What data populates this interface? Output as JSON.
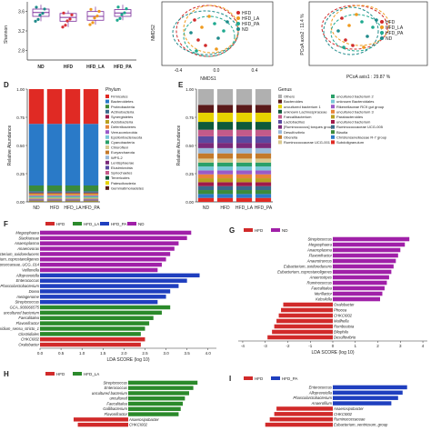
{
  "colors": {
    "ND": "#1f8a8a",
    "HFD": "#d8323a",
    "HFD_LA": "#ef9a1e",
    "HFD_PA": "#1fa98f",
    "lda_HFD": "#d12a2a",
    "lda_HFD_LA": "#2b8a2b",
    "lda_HFD_PA": "#1f3fbf",
    "lda_ND": "#a020a8",
    "box": "#7c2d9c"
  },
  "panel_labels": {
    "D": "D",
    "E": "E",
    "F": "F",
    "G": "G",
    "H": "H",
    "I": "I"
  },
  "chart_data": [
    {
      "type": "box",
      "panel": "A",
      "ylabel": "Shannon",
      "ylim": [
        2.6,
        3.8
      ],
      "yticks": [
        "2.8",
        "3.2",
        "3.6"
      ],
      "categories": [
        "ND",
        "HFD",
        "HFD_LA",
        "HFD_PA"
      ],
      "boxes": [
        {
          "q1": 3.5,
          "median": 3.58,
          "q3": 3.65,
          "min": 3.4,
          "max": 3.74
        },
        {
          "q1": 3.4,
          "median": 3.48,
          "q3": 3.56,
          "min": 3.28,
          "max": 3.62
        },
        {
          "q1": 3.42,
          "median": 3.5,
          "q3": 3.6,
          "min": 3.33,
          "max": 3.7
        },
        {
          "q1": 3.5,
          "median": 3.57,
          "q3": 3.64,
          "min": 3.42,
          "max": 3.74
        }
      ]
    },
    {
      "type": "scatter",
      "panel": "B",
      "xlabel": "NMDS1",
      "ylabel": "NMDS2",
      "xticks": [
        "-0.4",
        "0.0",
        "0.4"
      ],
      "legend": [
        "HFD",
        "HFD_LA",
        "HFD_PA",
        "ND"
      ]
    },
    {
      "type": "scatter",
      "panel": "C",
      "xlabel": "PCoA axis1 : 29.87 %",
      "ylabel": "PCoA axis2 : 11.4 %",
      "legend": [
        "HFD",
        "HFD_LA",
        "HFD_PA",
        "ND"
      ]
    },
    {
      "type": "stacked_bar",
      "panel": "D",
      "ylabel": "Relative Abundance",
      "yticks": [
        "0.00",
        "0.25",
        "0.50",
        "0.75",
        "1.00"
      ],
      "categories": [
        "ND",
        "HFD",
        "HFD_LA",
        "HFD_PA"
      ],
      "legend_title": "Phylum",
      "series": [
        {
          "name": "Gemmatimonadetes",
          "color": "#5a1a1a",
          "values": [
            0.003,
            0.003,
            0.003,
            0.003
          ]
        },
        {
          "name": "Patescibacteria",
          "color": "#e6d200",
          "values": [
            0.004,
            0.004,
            0.004,
            0.004
          ]
        },
        {
          "name": "Tenericutes",
          "color": "#0f5a3a",
          "values": [
            0.004,
            0.004,
            0.004,
            0.004
          ]
        },
        {
          "name": "Spirochaetes",
          "color": "#c45a8a",
          "values": [
            0.004,
            0.004,
            0.004,
            0.004
          ]
        },
        {
          "name": "Elusimicrobia",
          "color": "#5a4aa0",
          "values": [
            0.004,
            0.004,
            0.004,
            0.004
          ]
        },
        {
          "name": "Lentisphaerae",
          "color": "#7a2a7a",
          "values": [
            0.004,
            0.004,
            0.004,
            0.004
          ]
        },
        {
          "name": "WPS-2",
          "color": "#9ab8d8",
          "values": [
            0.004,
            0.004,
            0.004,
            0.004
          ]
        },
        {
          "name": "Euryarchaeota",
          "color": "#c47a2a",
          "values": [
            0.005,
            0.005,
            0.005,
            0.005
          ]
        },
        {
          "name": "Chloroflexi",
          "color": "#d8c890",
          "values": [
            0.006,
            0.006,
            0.006,
            0.006
          ]
        },
        {
          "name": "Cyanobacteria",
          "color": "#2aa06a",
          "values": [
            0.008,
            0.008,
            0.008,
            0.008
          ]
        },
        {
          "name": "Epsilonbacteraeota",
          "color": "#7ac8d8",
          "values": [
            0.006,
            0.006,
            0.006,
            0.006
          ]
        },
        {
          "name": "Verrucomicrobia",
          "color": "#9a5ac8",
          "values": [
            0.006,
            0.006,
            0.006,
            0.006
          ]
        },
        {
          "name": "Deferribacteres",
          "color": "#e8843a",
          "values": [
            0.01,
            0.01,
            0.01,
            0.01
          ]
        },
        {
          "name": "Acidobacteria",
          "color": "#b8a020",
          "values": [
            0.008,
            0.008,
            0.008,
            0.008
          ]
        },
        {
          "name": "Synergistetes",
          "color": "#a01a4a",
          "values": [
            0.006,
            0.006,
            0.006,
            0.006
          ]
        },
        {
          "name": "Actinobacteria",
          "color": "#3a6a8a",
          "values": [
            0.014,
            0.014,
            0.014,
            0.014
          ]
        },
        {
          "name": "Proteobacteria",
          "color": "#3a8a3a",
          "values": [
            0.05,
            0.05,
            0.05,
            0.05
          ]
        },
        {
          "name": "Bacteroidetes",
          "color": "#2a7ac8",
          "values": [
            0.55,
            0.55,
            0.55,
            0.55
          ]
        },
        {
          "name": "Firmicutes",
          "color": "#e02a24",
          "values": [
            0.31,
            0.31,
            0.31,
            0.31
          ]
        }
      ]
    },
    {
      "type": "stacked_bar",
      "panel": "E",
      "ylabel": "Relative Abundance",
      "yticks": [
        "0.00",
        "0.25",
        "0.50",
        "0.75",
        "1.00"
      ],
      "categories": [
        "ND",
        "HFD",
        "HFD_LA",
        "HFD_PA"
      ],
      "legend_title": "Genus",
      "series": [
        {
          "name": "Subdoligranulum",
          "color": "#e02a24",
          "values": [
            0.03,
            0.03,
            0.03,
            0.03
          ]
        },
        {
          "name": "Christensenellaceae R-7 group",
          "color": "#2a7ac8",
          "values": [
            0.03,
            0.03,
            0.03,
            0.03
          ]
        },
        {
          "name": "Blautia",
          "color": "#3a8a3a",
          "values": [
            0.03,
            0.03,
            0.03,
            0.03
          ]
        },
        {
          "name": "Ruminococcaceae UCG-005",
          "color": "#3a6a8a",
          "values": [
            0.03,
            0.03,
            0.03,
            0.03
          ]
        },
        {
          "name": "uncultured bacterium",
          "color": "#a01a4a",
          "values": [
            0.03,
            0.03,
            0.03,
            0.03
          ]
        },
        {
          "name": "Parabacteroides",
          "color": "#b8a020",
          "values": [
            0.03,
            0.03,
            0.03,
            0.03
          ]
        },
        {
          "name": "uncultured bacterium 3",
          "color": "#e8843a",
          "values": [
            0.03,
            0.03,
            0.03,
            0.03
          ]
        },
        {
          "name": "Rikenellaceae RC9 gut group",
          "color": "#9a5ac8",
          "values": [
            0.03,
            0.03,
            0.03,
            0.03
          ]
        },
        {
          "name": "unknown Bacteroidales",
          "color": "#7ac8d8",
          "values": [
            0.03,
            0.03,
            0.03,
            0.03
          ]
        },
        {
          "name": "uncultured bacterium 2",
          "color": "#2aa06a",
          "values": [
            0.03,
            0.03,
            0.03,
            0.03
          ]
        },
        {
          "name": "Ruminococcaceae UCG-001",
          "color": "#d8c890",
          "values": [
            0.03,
            0.03,
            0.03,
            0.03
          ]
        },
        {
          "name": "Oberella",
          "color": "#c47a2a",
          "values": [
            0.04,
            0.04,
            0.04,
            0.04
          ]
        },
        {
          "name": "Desulfovibrio",
          "color": "#9ab8d8",
          "values": [
            0.04,
            0.04,
            0.04,
            0.04
          ]
        },
        {
          "name": "[Ruminococcus] torques group",
          "color": "#7a2a7a",
          "values": [
            0.04,
            0.04,
            0.04,
            0.04
          ]
        },
        {
          "name": "Lactobacillus",
          "color": "#5a4aa0",
          "values": [
            0.05,
            0.05,
            0.05,
            0.05
          ]
        },
        {
          "name": "Faecalibacterium",
          "color": "#c45a8a",
          "values": [
            0.05,
            0.05,
            0.05,
            0.05
          ]
        },
        {
          "name": "unknown Lachnospiraceae",
          "color": "#0f5a3a",
          "values": [
            0.06,
            0.06,
            0.06,
            0.06
          ]
        },
        {
          "name": "uncultured bacterium 1",
          "color": "#e6d200",
          "values": [
            0.07,
            0.07,
            0.07,
            0.07
          ]
        },
        {
          "name": "Bacteroides",
          "color": "#5a1a1a",
          "values": [
            0.06,
            0.06,
            0.06,
            0.06
          ]
        },
        {
          "name": "Others",
          "color": "#b0b0b0",
          "values": [
            0.12,
            0.12,
            0.12,
            0.12
          ]
        }
      ]
    },
    {
      "type": "bar",
      "panel": "F",
      "xlabel": "LDA SCORE (log 10)",
      "xticks": [
        "0.0",
        "0.5",
        "1.0",
        "1.5",
        "2.0",
        "2.5",
        "3.0",
        "3.5",
        "4.0"
      ],
      "xlim": [
        0,
        4.2
      ],
      "legend": [
        "HFD",
        "HFD_LA",
        "HFD_PA",
        "ND"
      ],
      "items": [
        {
          "label": "Megasphaera",
          "group": "ND",
          "value": 3.6
        },
        {
          "label": "Slackiaceae",
          "group": "ND",
          "value": 3.5
        },
        {
          "label": "Anaeroplasma",
          "group": "ND",
          "value": 3.3
        },
        {
          "label": "Anaerovorax",
          "group": "ND",
          "value": 3.2
        },
        {
          "label": "Eubacterium_oxidoreducens",
          "group": "ND",
          "value": 3.1
        },
        {
          "label": "Eubacterium_coprostanoligenes",
          "group": "ND",
          "value": 3.0
        },
        {
          "label": "Ruminococcaceae_UCG_014",
          "group": "ND",
          "value": 2.9
        },
        {
          "label": "Veillonella",
          "group": "ND",
          "value": 2.8
        },
        {
          "label": "Alloprevotella",
          "group": "HFD_PA",
          "value": 3.8
        },
        {
          "label": "Enterococcus",
          "group": "HFD_PA",
          "value": 3.5
        },
        {
          "label": "Phascolarctobacterium",
          "group": "HFD_PA",
          "value": 3.3
        },
        {
          "label": "Dorea",
          "group": "HFD_PA",
          "value": 3.1
        },
        {
          "label": "metagenome",
          "group": "HFD_PA",
          "value": 3.0
        },
        {
          "label": "Streptococcus",
          "group": "HFD_PA",
          "value": 2.8
        },
        {
          "label": "GCA_900066575",
          "group": "HFD_LA",
          "value": 3.1
        },
        {
          "label": "uncultured bacterium",
          "group": "HFD_LA",
          "value": 2.9
        },
        {
          "label": "Faecalitalea",
          "group": "HFD_LA",
          "value": 2.7
        },
        {
          "label": "Flavonifractor",
          "group": "HFD_LA",
          "value": 2.6
        },
        {
          "label": "Clostridium_sensu_stricto_1",
          "group": "HFD_LA",
          "value": 2.5
        },
        {
          "label": "Clostridiales",
          "group": "HFD_LA",
          "value": 2.4
        },
        {
          "label": "CHKCI002",
          "group": "HFD",
          "value": 2.5
        },
        {
          "label": "Oxalobacter",
          "group": "HFD",
          "value": 2.4
        }
      ]
    },
    {
      "type": "bar",
      "panel": "G",
      "xlabel": "LDA SCORE (log 10)",
      "xticks": [
        "-4",
        "-3",
        "-2",
        "-1",
        "0",
        "1",
        "2",
        "3",
        "4"
      ],
      "xlim": [
        -4.2,
        4.2
      ],
      "legend": [
        "HFD",
        "ND"
      ],
      "items": [
        {
          "label": "Streptococcus",
          "group": "ND",
          "value": 3.4
        },
        {
          "label": "Megasphaera",
          "group": "ND",
          "value": 3.2
        },
        {
          "label": "Anaeroplasma",
          "group": "ND",
          "value": 3.0
        },
        {
          "label": "Flavonifractor",
          "group": "ND",
          "value": 2.9
        },
        {
          "label": "Anaerotruncus",
          "group": "ND",
          "value": 2.8
        },
        {
          "label": "Eubacterium_oxidoreducens",
          "group": "ND",
          "value": 2.7
        },
        {
          "label": "Eubacterium_coprostanoligenes",
          "group": "ND",
          "value": 2.6
        },
        {
          "label": "Anaerostipes",
          "group": "ND",
          "value": 2.5
        },
        {
          "label": "Ruminococcus",
          "group": "ND",
          "value": 2.4
        },
        {
          "label": "Faecalitalea",
          "group": "ND",
          "value": 2.3
        },
        {
          "label": "Merillactor",
          "group": "ND",
          "value": 2.2
        },
        {
          "label": "Kebsilella",
          "group": "ND",
          "value": 2.1
        },
        {
          "label": "Oxalobacter",
          "group": "HFD",
          "value": -2.2
        },
        {
          "label": "Phocea",
          "group": "HFD",
          "value": -2.3
        },
        {
          "label": "CHKCI002",
          "group": "HFD",
          "value": -2.4
        },
        {
          "label": "Mailhella",
          "group": "HFD",
          "value": -2.5
        },
        {
          "label": "Romboutsia",
          "group": "HFD",
          "value": -2.6
        },
        {
          "label": "Bilophila",
          "group": "HFD",
          "value": -2.7
        },
        {
          "label": "Desulfovibrio",
          "group": "HFD",
          "value": -2.9
        }
      ]
    },
    {
      "type": "bar",
      "panel": "H",
      "legend": [
        "HFD",
        "HFD_LA"
      ],
      "xlim": [
        -4.2,
        4.2
      ],
      "items": [
        {
          "label": "Streptococcus",
          "group": "HFD_LA",
          "value": 3.3
        },
        {
          "label": "Enterococcus",
          "group": "HFD_LA",
          "value": 3.1
        },
        {
          "label": "uncultured bacterium",
          "group": "HFD_LA",
          "value": 2.9
        },
        {
          "label": "uncultured",
          "group": "HFD_LA",
          "value": 2.7
        },
        {
          "label": "Faecalitalea",
          "group": "HFD_LA",
          "value": 2.6
        },
        {
          "label": "Gallibacterium",
          "group": "HFD_LA",
          "value": 2.5
        },
        {
          "label": "Flavonifractor",
          "group": "HFD_LA",
          "value": 2.4
        },
        {
          "label": "Anaerosipobacter",
          "group": "HFD",
          "value": -2.6
        },
        {
          "label": "CHKCI002",
          "group": "HFD",
          "value": -2.4
        }
      ]
    },
    {
      "type": "bar",
      "panel": "I",
      "legend": [
        "HFD",
        "HFD_PA"
      ],
      "xlim": [
        -4.2,
        4.2
      ],
      "items": [
        {
          "label": "Enterococcus",
          "group": "HFD_PA",
          "value": 3.3
        },
        {
          "label": "Alloprevotella",
          "group": "HFD_PA",
          "value": 3.1
        },
        {
          "label": "Phascolarctobacterium",
          "group": "HFD_PA",
          "value": 2.9
        },
        {
          "label": "Anaerofilum",
          "group": "HFD_PA",
          "value": 2.6
        },
        {
          "label": "Anaerosipobacter",
          "group": "HFD",
          "value": -2.5
        },
        {
          "label": "CHKCI002",
          "group": "HFD",
          "value": -2.6
        },
        {
          "label": "Ruminococcaceae",
          "group": "HFD",
          "value": -2.8
        },
        {
          "label": "Eubacterium_ventriosum_group",
          "group": "HFD",
          "value": -3.0
        }
      ]
    }
  ]
}
